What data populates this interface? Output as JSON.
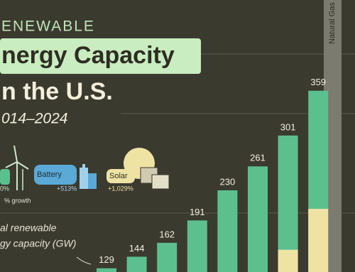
{
  "header": {
    "kicker": "ENEWABLE",
    "title": "nergy Capacity",
    "title_line2": "n the U.S.",
    "years": "014–2024"
  },
  "legend": {
    "wind_growth": "0%",
    "battery": "Battery",
    "battery_growth": "+513%",
    "solar": "Solar",
    "solar_growth": "+1,029%",
    "growth_note": "% growth",
    "axis_note_line1": "al renewable",
    "axis_note_line2": "gy capacity (GW)"
  },
  "chart_data": {
    "type": "bar",
    "values": [
      129,
      144,
      162,
      191,
      230,
      261,
      301,
      359
    ],
    "color": "#5cbf8e",
    "overlay": {
      "values": [
        null,
        null,
        null,
        null,
        null,
        null,
        153,
        206
      ],
      "color": "#efe3a4"
    },
    "reference_label": "Natural Gas"
  }
}
